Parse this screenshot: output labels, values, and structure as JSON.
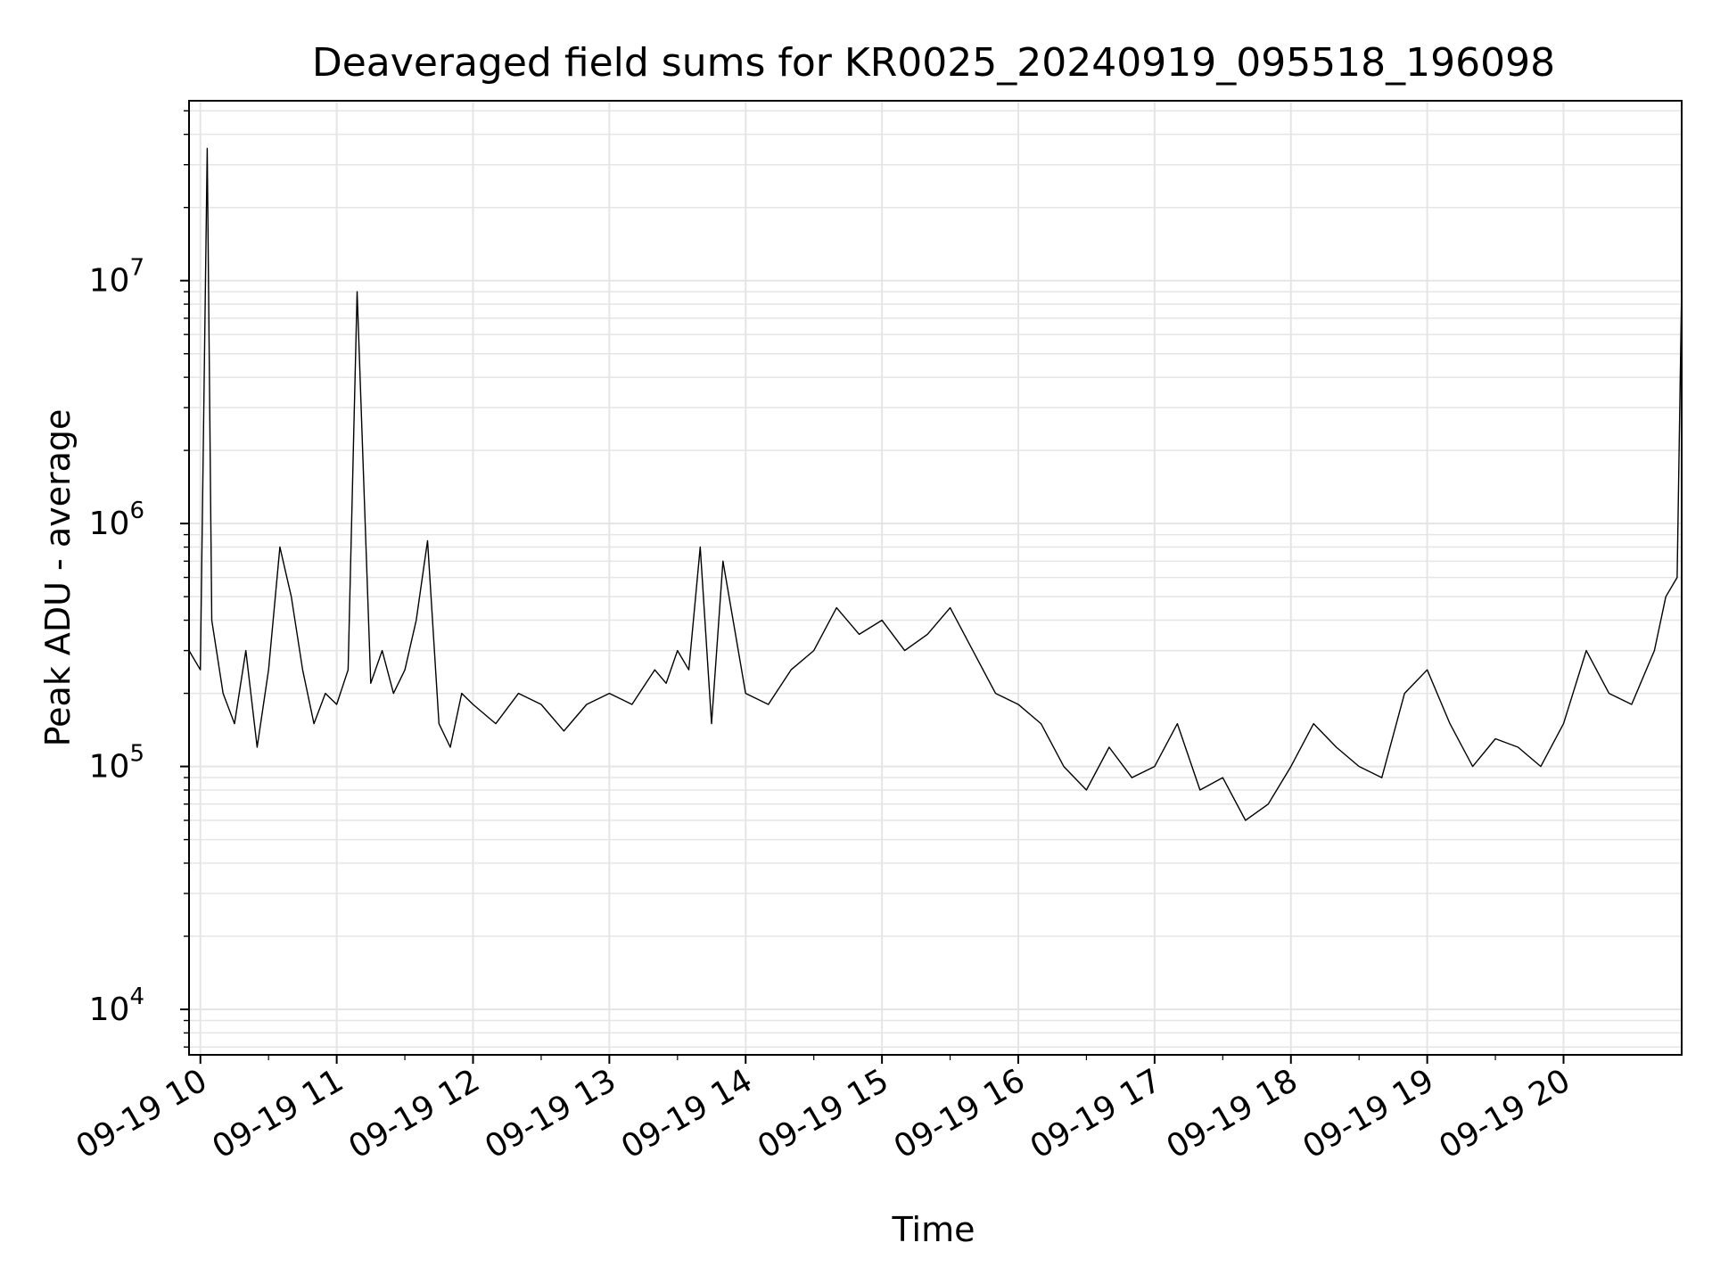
{
  "chart_data": {
    "type": "line",
    "title": "Deaveraged field sums for KR0025_20240919_095518_196098",
    "xlabel": "Time",
    "ylabel": "Peak ADU - average",
    "y_scale": "log",
    "xlim": [
      "2024-09-19 09:55",
      "2024-09-19 20:52"
    ],
    "ylim": [
      6500,
      55000000
    ],
    "grid": true,
    "line_color": "#000000",
    "grid_color": "#e5e5e5",
    "x_ticks": [
      {
        "value": "2024-09-19 10:00",
        "label": "09-19 10"
      },
      {
        "value": "2024-09-19 11:00",
        "label": "09-19 11"
      },
      {
        "value": "2024-09-19 12:00",
        "label": "09-19 12"
      },
      {
        "value": "2024-09-19 13:00",
        "label": "09-19 13"
      },
      {
        "value": "2024-09-19 14:00",
        "label": "09-19 14"
      },
      {
        "value": "2024-09-19 15:00",
        "label": "09-19 15"
      },
      {
        "value": "2024-09-19 16:00",
        "label": "09-19 16"
      },
      {
        "value": "2024-09-19 17:00",
        "label": "09-19 17"
      },
      {
        "value": "2024-09-19 18:00",
        "label": "09-19 18"
      },
      {
        "value": "2024-09-19 19:00",
        "label": "09-19 19"
      },
      {
        "value": "2024-09-19 20:00",
        "label": "09-19 20"
      }
    ],
    "y_ticks": [
      {
        "value": 10000,
        "base": "10",
        "exp": "4"
      },
      {
        "value": 100000,
        "base": "10",
        "exp": "5"
      },
      {
        "value": 1000000,
        "base": "10",
        "exp": "6"
      },
      {
        "value": 10000000,
        "base": "10",
        "exp": "7"
      }
    ],
    "x": [
      "2024-09-19 09:55",
      "2024-09-19 10:00",
      "2024-09-19 10:03",
      "2024-09-19 10:05",
      "2024-09-19 10:10",
      "2024-09-19 10:15",
      "2024-09-19 10:20",
      "2024-09-19 10:25",
      "2024-09-19 10:30",
      "2024-09-19 10:35",
      "2024-09-19 10:40",
      "2024-09-19 10:45",
      "2024-09-19 10:50",
      "2024-09-19 10:55",
      "2024-09-19 11:00",
      "2024-09-19 11:05",
      "2024-09-19 11:09",
      "2024-09-19 11:15",
      "2024-09-19 11:20",
      "2024-09-19 11:25",
      "2024-09-19 11:30",
      "2024-09-19 11:35",
      "2024-09-19 11:40",
      "2024-09-19 11:45",
      "2024-09-19 11:50",
      "2024-09-19 11:55",
      "2024-09-19 12:00",
      "2024-09-19 12:10",
      "2024-09-19 12:20",
      "2024-09-19 12:30",
      "2024-09-19 12:40",
      "2024-09-19 12:50",
      "2024-09-19 13:00",
      "2024-09-19 13:10",
      "2024-09-19 13:20",
      "2024-09-19 13:25",
      "2024-09-19 13:30",
      "2024-09-19 13:35",
      "2024-09-19 13:40",
      "2024-09-19 13:45",
      "2024-09-19 13:50",
      "2024-09-19 14:00",
      "2024-09-19 14:10",
      "2024-09-19 14:20",
      "2024-09-19 14:30",
      "2024-09-19 14:40",
      "2024-09-19 14:50",
      "2024-09-19 15:00",
      "2024-09-19 15:10",
      "2024-09-19 15:20",
      "2024-09-19 15:30",
      "2024-09-19 15:40",
      "2024-09-19 15:50",
      "2024-09-19 16:00",
      "2024-09-19 16:10",
      "2024-09-19 16:20",
      "2024-09-19 16:30",
      "2024-09-19 16:40",
      "2024-09-19 16:50",
      "2024-09-19 17:00",
      "2024-09-19 17:10",
      "2024-09-19 17:20",
      "2024-09-19 17:30",
      "2024-09-19 17:40",
      "2024-09-19 17:50",
      "2024-09-19 18:00",
      "2024-09-19 18:10",
      "2024-09-19 18:20",
      "2024-09-19 18:30",
      "2024-09-19 18:40",
      "2024-09-19 18:50",
      "2024-09-19 19:00",
      "2024-09-19 19:10",
      "2024-09-19 19:20",
      "2024-09-19 19:30",
      "2024-09-19 19:40",
      "2024-09-19 19:50",
      "2024-09-19 20:00",
      "2024-09-19 20:10",
      "2024-09-19 20:20",
      "2024-09-19 20:30",
      "2024-09-19 20:40",
      "2024-09-19 20:45",
      "2024-09-19 20:50",
      "2024-09-19 20:52"
    ],
    "series": [
      {
        "values": [
          300000,
          250000,
          35000000,
          400000,
          200000,
          150000,
          300000,
          120000,
          250000,
          800000,
          500000,
          250000,
          150000,
          200000,
          180000,
          250000,
          9000000,
          220000,
          300000,
          200000,
          250000,
          400000,
          850000,
          150000,
          120000,
          200000,
          180000,
          150000,
          200000,
          180000,
          140000,
          180000,
          200000,
          180000,
          250000,
          220000,
          300000,
          250000,
          800000,
          150000,
          700000,
          200000,
          180000,
          250000,
          300000,
          450000,
          350000,
          400000,
          300000,
          350000,
          450000,
          300000,
          200000,
          180000,
          150000,
          100000,
          80000,
          120000,
          90000,
          100000,
          150000,
          80000,
          90000,
          60000,
          70000,
          100000,
          150000,
          120000,
          100000,
          90000,
          200000,
          250000,
          150000,
          100000,
          130000,
          120000,
          100000,
          150000,
          300000,
          200000,
          180000,
          300000,
          500000,
          600000,
          9500000
        ]
      }
    ]
  }
}
